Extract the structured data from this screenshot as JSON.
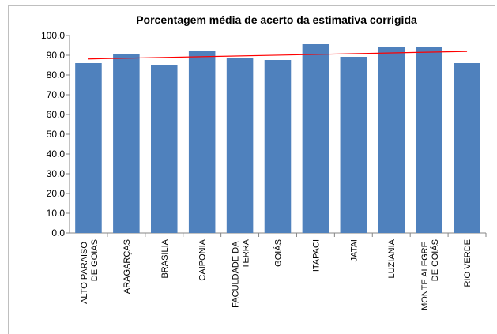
{
  "chart_data": {
    "type": "bar",
    "title": "Porcentagem média de acerto da estimativa corrigida",
    "categories": [
      "ALTO PARAISO DE GOIAS",
      "ARAGARÇAS",
      "BRASILIA",
      "CAIPONIA",
      "FACULDADE DA TERRA",
      "GOIÁS",
      "ITAPACI",
      "JATAI",
      "LUZIANIA",
      "MONTE ALEGRE DE GOIÁS",
      "RIO VERDE"
    ],
    "values": [
      86,
      90.8,
      85.2,
      92.4,
      88.8,
      87.6,
      95.6,
      89.2,
      94.4,
      94.4,
      86
    ],
    "color": "#4f81bd",
    "ylim": [
      0,
      100
    ],
    "yticks": [
      {
        "value": 0,
        "label": "0.0"
      },
      {
        "value": 10,
        "label": "10.0"
      },
      {
        "value": 20,
        "label": "20.0"
      },
      {
        "value": 30,
        "label": "30.0"
      },
      {
        "value": 40,
        "label": "40.0"
      },
      {
        "value": 50,
        "label": "50.0"
      },
      {
        "value": 60,
        "label": "60.0"
      },
      {
        "value": 70,
        "label": "70.0"
      },
      {
        "value": 80,
        "label": "80.0"
      },
      {
        "value": 90,
        "label": "90.0"
      },
      {
        "value": 100,
        "label": "100.0"
      }
    ],
    "grid": false,
    "trendline": "linear",
    "trendline_color": "#ff0000"
  }
}
